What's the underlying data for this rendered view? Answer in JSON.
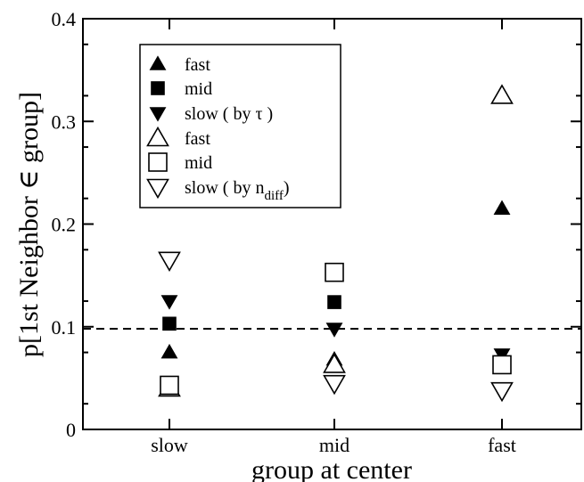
{
  "chart_data": {
    "type": "scatter",
    "title": "",
    "xlabel": "group at center",
    "ylabel": "p[1st Neighbor ∈ group]",
    "categories": [
      "slow",
      "mid",
      "fast"
    ],
    "ylim": [
      0,
      0.4
    ],
    "yticks": [
      "0",
      "0.1",
      "0.2",
      "0.3",
      "0.4"
    ],
    "grid": false,
    "legend_position": "top-left",
    "reference_line": {
      "y": 0.098,
      "style": "dashed"
    },
    "series": [
      {
        "name": "fast",
        "marker": "triangle-up",
        "filled": true,
        "values": [
          0.075,
          0.068,
          0.215
        ]
      },
      {
        "name": "mid",
        "marker": "square",
        "filled": true,
        "values": [
          0.103,
          0.124,
          0.065
        ]
      },
      {
        "name": "slow",
        "label_suffix": "by τ",
        "marker": "triangle-down",
        "filled": true,
        "values": [
          0.125,
          0.098,
          0.073
        ]
      },
      {
        "name": "fast",
        "marker": "triangle-up",
        "filled": false,
        "values": [
          0.04,
          0.063,
          0.325
        ]
      },
      {
        "name": "mid",
        "marker": "square",
        "filled": false,
        "values": [
          0.043,
          0.153,
          0.063
        ]
      },
      {
        "name": "slow",
        "label_suffix": "by n_diff",
        "marker": "triangle-down",
        "filled": false,
        "values": [
          0.165,
          0.045,
          0.038
        ]
      }
    ]
  }
}
